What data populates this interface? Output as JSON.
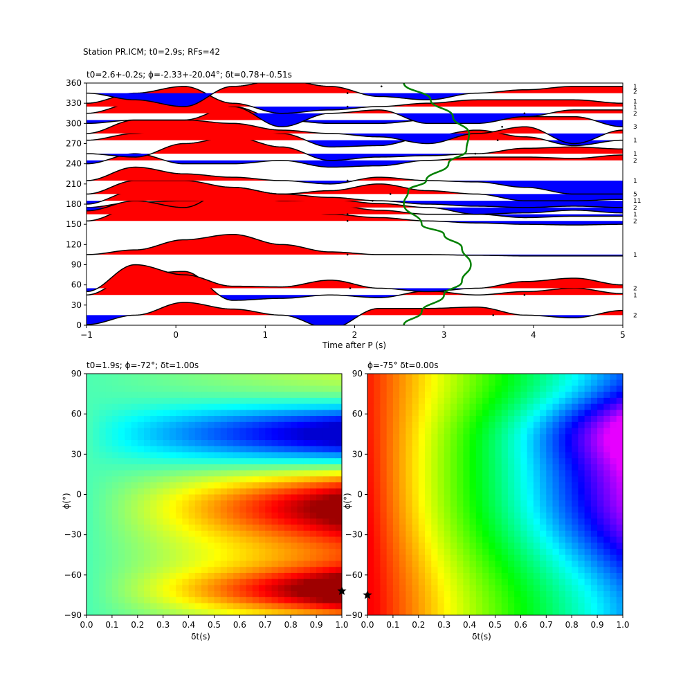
{
  "suptitle": "Station PR.ICM; t0=2.9s; RFs=42",
  "chart_data": [
    {
      "type": "line",
      "title": "t0=2.6+-0.2s; ϕ=-2.33+-20.04°; δt=0.78+-0.51s",
      "xlabel": "Time after P (s)",
      "ylabel": "",
      "xlim": [
        -1,
        5
      ],
      "ylim": [
        0,
        360
      ],
      "xticks": [
        "−1",
        "0",
        "1",
        "2",
        "3",
        "4",
        "5"
      ],
      "yticks": [
        "0",
        "30",
        "60",
        "90",
        "120",
        "150",
        "180",
        "210",
        "240",
        "270",
        "300",
        "330",
        "360"
      ],
      "colors": {
        "positive": "#ff0000",
        "negative": "#0000ff",
        "trace": "#000000",
        "fit": "#008000"
      },
      "traces": [
        {
          "baseline": 15,
          "amp": [
            -14,
            0,
            19,
            9,
            0,
            -20,
            10,
            10,
            12,
            0,
            -4,
            7
          ]
        },
        {
          "baseline": 45,
          "amp": [
            0,
            30,
            35,
            -8,
            -5,
            0,
            -4,
            6,
            0,
            5,
            10,
            2
          ]
        },
        {
          "baseline": 55,
          "amp": [
            -5,
            35,
            20,
            3,
            2,
            12,
            0,
            -5,
            0,
            10,
            15,
            5
          ]
        },
        {
          "baseline": 105,
          "amp": [
            0,
            7,
            22,
            30,
            15,
            4,
            0,
            0,
            -1,
            -2,
            -2,
            -2
          ]
        },
        {
          "baseline": 155,
          "amp": [
            0,
            20,
            28,
            30,
            20,
            10,
            5,
            0,
            -3,
            -5,
            -6,
            -5
          ]
        },
        {
          "baseline": 165,
          "amp": [
            10,
            18,
            20,
            22,
            20,
            14,
            6,
            0,
            0,
            -5,
            -3,
            -3
          ]
        },
        {
          "baseline": 175,
          "amp": [
            -5,
            10,
            0,
            30,
            10,
            12,
            6,
            0,
            -10,
            -8,
            -4,
            -8
          ]
        },
        {
          "baseline": 185,
          "amp": [
            -5,
            15,
            25,
            20,
            10,
            5,
            0,
            -5,
            -8,
            -10,
            -8,
            -10
          ]
        },
        {
          "baseline": 195,
          "amp": [
            0,
            20,
            20,
            10,
            0,
            5,
            15,
            5,
            0,
            -10,
            -10,
            -8
          ]
        },
        {
          "baseline": 215,
          "amp": [
            0,
            20,
            10,
            5,
            0,
            -5,
            5,
            0,
            -2,
            -10,
            -20,
            -20
          ]
        },
        {
          "baseline": 245,
          "amp": [
            -5,
            10,
            -5,
            -5,
            0,
            -10,
            -8,
            0,
            5,
            5,
            3,
            8
          ]
        },
        {
          "baseline": 255,
          "amp": [
            0,
            -5,
            15,
            25,
            10,
            -10,
            -5,
            -3,
            0,
            8,
            10,
            7
          ]
        },
        {
          "baseline": 275,
          "amp": [
            0,
            10,
            25,
            25,
            10,
            -10,
            -8,
            5,
            15,
            5,
            -8,
            0
          ]
        },
        {
          "baseline": 285,
          "amp": [
            0,
            20,
            20,
            15,
            5,
            0,
            -5,
            -15,
            0,
            10,
            -15,
            5
          ]
        },
        {
          "baseline": 305,
          "amp": [
            -5,
            0,
            0,
            20,
            0,
            -5,
            -5,
            0,
            8,
            5,
            5,
            -10
          ]
        },
        {
          "baseline": 315,
          "amp": [
            0,
            15,
            40,
            10,
            -20,
            0,
            5,
            -15,
            -15,
            -5,
            5,
            5
          ]
        },
        {
          "baseline": 325,
          "amp": [
            5,
            20,
            30,
            5,
            -10,
            -5,
            0,
            5,
            10,
            10,
            10,
            5
          ]
        },
        {
          "baseline": 345,
          "amp": [
            0,
            -10,
            -20,
            10,
            20,
            10,
            -5,
            -10,
            0,
            5,
            10,
            10
          ]
        }
      ],
      "fit_curve": {
        "label": "",
        "x": [
          2.55,
          2.75,
          3.0,
          3.2,
          3.3,
          3.2,
          3.0,
          2.75,
          2.55,
          2.6,
          2.8,
          3.05,
          3.25,
          3.28,
          3.1,
          2.85,
          2.55
        ],
        "y": [
          0,
          20,
          45,
          65,
          90,
          115,
          135,
          150,
          180,
          200,
          215,
          240,
          260,
          285,
          310,
          335,
          360
        ]
      },
      "right_counts": [
        {
          "y": 355,
          "text": "1"
        },
        {
          "y": 347,
          "text": "2"
        },
        {
          "y": 333,
          "text": "1"
        },
        {
          "y": 324,
          "text": "1"
        },
        {
          "y": 315,
          "text": "2"
        },
        {
          "y": 295,
          "text": "3"
        },
        {
          "y": 275,
          "text": "1"
        },
        {
          "y": 255,
          "text": "1"
        },
        {
          "y": 245,
          "text": "2"
        },
        {
          "y": 215,
          "text": "1"
        },
        {
          "y": 195,
          "text": "5"
        },
        {
          "y": 185,
          "text": "11"
        },
        {
          "y": 175,
          "text": "2"
        },
        {
          "y": 165,
          "text": "1"
        },
        {
          "y": 155,
          "text": "2"
        },
        {
          "y": 105,
          "text": "1"
        },
        {
          "y": 55,
          "text": "2"
        },
        {
          "y": 45,
          "text": "1"
        },
        {
          "y": 15,
          "text": "2"
        }
      ],
      "dots": [
        {
          "x": 1.92,
          "y": 345
        },
        {
          "x": 2.3,
          "y": 355
        },
        {
          "x": 1.92,
          "y": 325
        },
        {
          "x": 3.9,
          "y": 315
        },
        {
          "x": 3.65,
          "y": 295
        },
        {
          "x": 3.6,
          "y": 275
        },
        {
          "x": 3.35,
          "y": 255
        },
        {
          "x": 1.92,
          "y": 215
        },
        {
          "x": 2.4,
          "y": 195
        },
        {
          "x": 2.2,
          "y": 185
        },
        {
          "x": 1.92,
          "y": 165
        },
        {
          "x": 1.92,
          "y": 155
        },
        {
          "x": 1.92,
          "y": 105
        },
        {
          "x": 1.95,
          "y": 55
        },
        {
          "x": 3.9,
          "y": 45
        },
        {
          "x": 3.55,
          "y": 15
        }
      ]
    },
    {
      "type": "heatmap",
      "title": "t0=1.9s; ϕ=-72°; δt=1.00s",
      "xlabel": "δt(s)",
      "ylabel": "ϕ(°)",
      "xlim": [
        0,
        1
      ],
      "ylim": [
        -90,
        90
      ],
      "xticks": [
        "0.0",
        "0.1",
        "0.2",
        "0.3",
        "0.4",
        "0.5",
        "0.6",
        "0.7",
        "0.8",
        "0.9",
        "1.0"
      ],
      "yticks": [
        "−90",
        "−60",
        "−30",
        "0",
        "30",
        "60",
        "90"
      ],
      "colormap": "jet",
      "marker": {
        "symbol": "star",
        "x": 1.0,
        "y": -72
      }
    },
    {
      "type": "heatmap",
      "title": "ϕ=-75° δt=0.00s",
      "xlabel": "δt(s)",
      "ylabel": "ϕ(°)",
      "xlim": [
        0,
        1
      ],
      "ylim": [
        -90,
        90
      ],
      "xticks": [
        "0.0",
        "0.1",
        "0.2",
        "0.3",
        "0.4",
        "0.5",
        "0.6",
        "0.7",
        "0.8",
        "0.9",
        "1.0"
      ],
      "yticks": [
        "−90",
        "−60",
        "−30",
        "0",
        "30",
        "60",
        "90"
      ],
      "colormap": "hsv",
      "marker": {
        "symbol": "star",
        "x": 0.0,
        "y": -75
      }
    }
  ]
}
